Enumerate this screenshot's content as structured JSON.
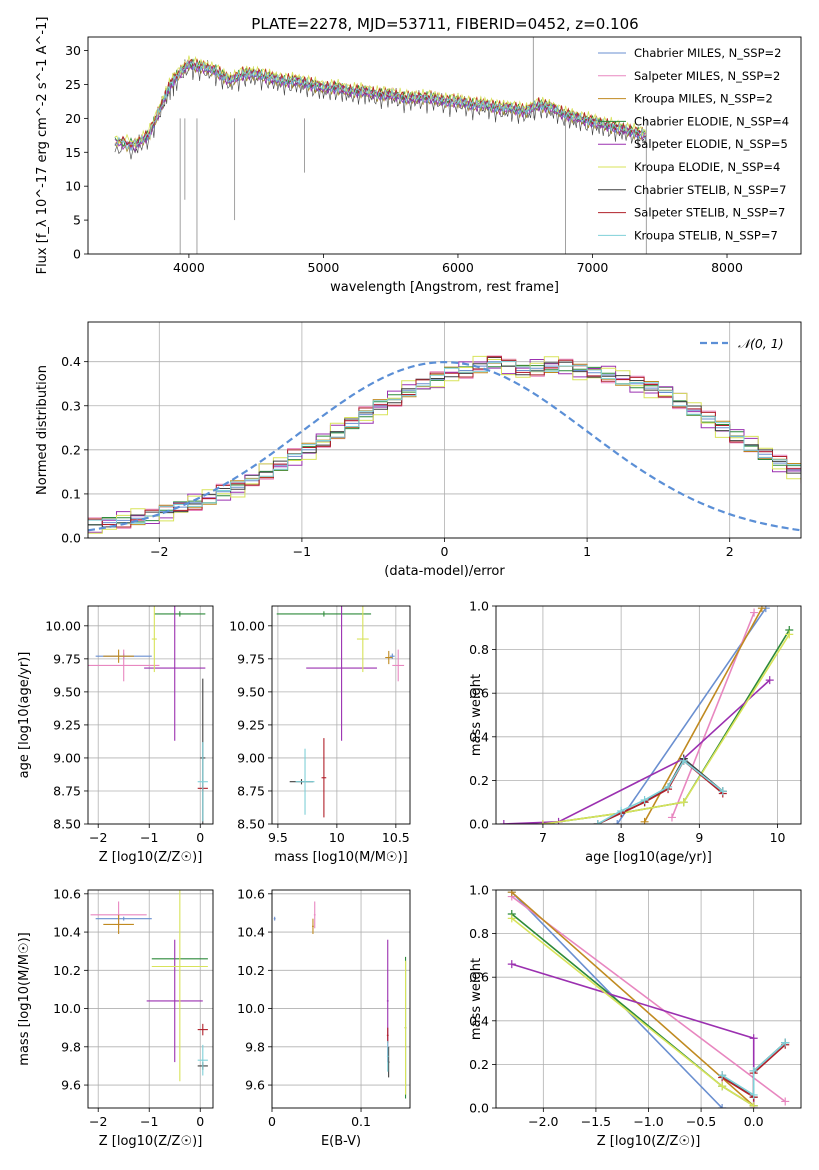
{
  "figure_title": "PLATE=2278, MJD=53711, FIBERID=0452, z=0.106",
  "series_names": [
    "Chabrier MILES, N_SSP=2",
    "Salpeter MILES, N_SSP=2",
    "Kroupa MILES, N_SSP=2",
    "Chabrier ELODIE, N_SSP=4",
    "Salpeter ELODIE, N_SSP=5",
    "Kroupa ELODIE, N_SSP=4",
    "Chabrier STELIB, N_SSP=7",
    "Salpeter STELIB, N_SSP=7",
    "Kroupa STELIB, N_SSP=7"
  ],
  "colors": [
    "#5b8fd6",
    "#e07b3a",
    "#a88c2c",
    "#2d8a3a",
    "#9b30b0",
    "#d8e35a",
    "#404040",
    "#b0202a",
    "#7fd0d8"
  ],
  "legend_colors": [
    "#6a8fd0",
    "#e887c0",
    "#c08a20",
    "#2d8a3a",
    "#9b30b0",
    "#d8e35a",
    "#404040",
    "#b0202a",
    "#7fd0d8"
  ],
  "chart_data": [
    {
      "type": "line",
      "title": "PLATE=2278, MJD=53711, FIBERID=0452, z=0.106",
      "xlabel": "wavelength [Angstrom, rest frame]",
      "ylabel": "Flux [f_λ 10^-17 erg cm^-2 s^-1 A^-1]",
      "xlim": [
        3250,
        8550
      ],
      "ylim": [
        0,
        32
      ],
      "xticks": [
        4000,
        5000,
        6000,
        7000,
        8000
      ],
      "yticks": [
        0,
        5,
        10,
        15,
        20,
        25,
        30
      ],
      "spectrum": {
        "x": [
          3450,
          3600,
          3700,
          3800,
          3850,
          3900,
          4000,
          4100,
          4200,
          4300,
          4400,
          4500,
          4600,
          4700,
          4800,
          4900,
          5000,
          5100,
          5200,
          5300,
          5400,
          5500,
          5600,
          5700,
          5800,
          5900,
          6000,
          6100,
          6200,
          6300,
          6400,
          6500,
          6600,
          6700,
          6800,
          6900,
          7000,
          7100,
          7200,
          7300,
          7400
        ],
        "y": [
          16.5,
          16.0,
          17.5,
          22.0,
          24.5,
          26.0,
          28.0,
          27.5,
          27.0,
          25.5,
          26.5,
          26.5,
          26.0,
          25.5,
          25.5,
          25.0,
          24.5,
          24.5,
          24.0,
          24.0,
          23.5,
          23.5,
          23.0,
          23.0,
          23.0,
          22.5,
          22.5,
          22.0,
          22.0,
          21.5,
          21.5,
          21.0,
          22.0,
          21.5,
          20.5,
          20.0,
          19.5,
          19.0,
          18.5,
          18.0,
          17.5
        ]
      },
      "legend": "top-right"
    },
    {
      "type": "line",
      "xlabel": "(data-model)/error",
      "ylabel": "Normed distribution",
      "xlim": [
        -2.5,
        2.5
      ],
      "ylim": [
        0,
        0.49
      ],
      "xticks": [
        -2,
        -1,
        0,
        1,
        2
      ],
      "yticks": [
        0.0,
        0.1,
        0.2,
        0.3,
        0.4
      ],
      "gauss_label": "𝒩(0, 1)",
      "histogram": {
        "edges_from": -2.5,
        "bin_width": 0.1,
        "values": [
          0.03,
          0.035,
          0.04,
          0.045,
          0.05,
          0.06,
          0.07,
          0.08,
          0.09,
          0.105,
          0.115,
          0.13,
          0.15,
          0.165,
          0.185,
          0.2,
          0.22,
          0.24,
          0.26,
          0.28,
          0.3,
          0.315,
          0.335,
          0.35,
          0.36,
          0.375,
          0.38,
          0.39,
          0.4,
          0.39,
          0.38,
          0.385,
          0.39,
          0.39,
          0.38,
          0.375,
          0.37,
          0.36,
          0.35,
          0.34,
          0.33,
          0.31,
          0.29,
          0.27,
          0.25,
          0.23,
          0.21,
          0.19,
          0.17,
          0.155,
          0.14,
          0.12,
          0.105,
          0.09,
          0.08,
          0.07,
          0.06,
          0.05,
          0.045,
          0.04
        ]
      },
      "grid": true,
      "legend": "top-right"
    },
    {
      "type": "scatter",
      "xlabel": "Z [log10(Z/Z☉)]",
      "ylabel": "age  [log10(age/yr)]",
      "xlim": [
        -2.2,
        0.25
      ],
      "ylim": [
        8.5,
        10.15
      ],
      "xticks": [
        -2,
        -1,
        0
      ],
      "yticks": [
        8.5,
        8.75,
        9.0,
        9.25,
        9.5,
        9.75,
        10.0
      ],
      "points": [
        {
          "series": 0,
          "x": -1.5,
          "y": 9.77,
          "xerr": 0.55,
          "yerr": 0.02
        },
        {
          "series": 1,
          "x": -1.5,
          "y": 9.7,
          "xerr": 0.7,
          "yerr": 0.12
        },
        {
          "series": 2,
          "x": -1.6,
          "y": 9.77,
          "xerr": 0.3,
          "yerr": 0.05
        },
        {
          "series": 3,
          "x": -0.4,
          "y": 10.09,
          "xerr": 0.5,
          "yerr": 0.02
        },
        {
          "series": 4,
          "x": -0.5,
          "y": 9.68,
          "xerr": 0.6,
          "yerr": 0.55
        },
        {
          "series": 5,
          "x": -0.9,
          "y": 9.9,
          "xerr": 0.05,
          "yerr": 0.25
        },
        {
          "series": 6,
          "x": 0.05,
          "y": 9.0,
          "xerr": 0.05,
          "yerr": 0.6
        },
        {
          "series": 7,
          "x": 0.05,
          "y": 8.77,
          "xerr": 0.1,
          "yerr": 0.02
        },
        {
          "series": 8,
          "x": 0.05,
          "y": 8.82,
          "xerr": 0.1,
          "yerr": 0.3
        }
      ],
      "grid": true
    },
    {
      "type": "scatter",
      "xlabel": "mass [log10(M/M☉)]",
      "ylabel": "",
      "xlim": [
        9.45,
        10.62
      ],
      "ylim": [
        8.5,
        10.15
      ],
      "xticks": [
        9.5,
        10.0,
        10.5
      ],
      "yticks": [
        8.5,
        8.75,
        9.0,
        9.25,
        9.5,
        9.75,
        10.0
      ],
      "points": [
        {
          "series": 0,
          "x": 10.47,
          "y": 9.77,
          "xerr": 0.02,
          "yerr": 0.02
        },
        {
          "series": 1,
          "x": 10.52,
          "y": 9.7,
          "xerr": 0.05,
          "yerr": 0.12
        },
        {
          "series": 2,
          "x": 10.44,
          "y": 9.76,
          "xerr": 0.03,
          "yerr": 0.05
        },
        {
          "series": 3,
          "x": 9.89,
          "y": 10.09,
          "xerr": 0.4,
          "yerr": 0.02
        },
        {
          "series": 4,
          "x": 10.04,
          "y": 9.68,
          "xerr": 0.3,
          "yerr": 0.55
        },
        {
          "series": 5,
          "x": 10.22,
          "y": 9.9,
          "xerr": 0.05,
          "yerr": 0.25
        },
        {
          "series": 6,
          "x": 9.7,
          "y": 8.82,
          "xerr": 0.1,
          "yerr": 0.02
        },
        {
          "series": 7,
          "x": 9.89,
          "y": 8.85,
          "xerr": 0.02,
          "yerr": 0.3
        },
        {
          "series": 8,
          "x": 9.73,
          "y": 8.82,
          "xerr": 0.08,
          "yerr": 0.25
        }
      ],
      "grid": true
    },
    {
      "type": "line",
      "xlabel": "age  [log10(age/yr)]",
      "ylabel": "mass weight",
      "xlim": [
        6.4,
        10.3
      ],
      "ylim": [
        0,
        1
      ],
      "xticks": [
        7,
        8,
        9,
        10
      ],
      "yticks": [
        0.0,
        0.2,
        0.4,
        0.6,
        0.8,
        1.0
      ],
      "series": [
        {
          "series": 0,
          "x": [
            7.95,
            9.85
          ],
          "y": [
            0.0,
            0.99
          ]
        },
        {
          "series": 1,
          "x": [
            8.65,
            9.7
          ],
          "y": [
            0.03,
            0.97
          ]
        },
        {
          "series": 2,
          "x": [
            8.3,
            9.8
          ],
          "y": [
            0.01,
            0.99
          ]
        },
        {
          "series": 3,
          "x": [
            7.0,
            8.0,
            8.8,
            10.15
          ],
          "y": [
            0.0,
            0.05,
            0.1,
            0.89
          ]
        },
        {
          "series": 4,
          "x": [
            6.5,
            7.2,
            8.8,
            9.9
          ],
          "y": [
            0.0,
            0.01,
            0.3,
            0.66
          ]
        },
        {
          "series": 5,
          "x": [
            7.0,
            8.0,
            8.8,
            10.15
          ],
          "y": [
            0.0,
            0.05,
            0.1,
            0.87
          ]
        },
        {
          "series": 6,
          "x": [
            7.7,
            8.0,
            8.3,
            8.6,
            8.8,
            9.3
          ],
          "y": [
            0.0,
            0.05,
            0.1,
            0.17,
            0.3,
            0.15
          ]
        },
        {
          "series": 7,
          "x": [
            7.7,
            8.0,
            8.3,
            8.6,
            8.8,
            9.3
          ],
          "y": [
            0.0,
            0.05,
            0.1,
            0.16,
            0.29,
            0.14
          ]
        },
        {
          "series": 8,
          "x": [
            7.7,
            8.0,
            8.3,
            8.6,
            8.8,
            9.3
          ],
          "y": [
            0.0,
            0.06,
            0.11,
            0.17,
            0.29,
            0.15
          ]
        }
      ],
      "grid": true
    },
    {
      "type": "scatter",
      "xlabel": "Z [log10(Z/Z☉)]",
      "ylabel": "mass [log10(M/M☉)]",
      "xlim": [
        -2.2,
        0.25
      ],
      "ylim": [
        9.48,
        10.62
      ],
      "xticks": [
        -2,
        -1,
        0
      ],
      "yticks": [
        9.6,
        9.8,
        10.0,
        10.2,
        10.4,
        10.6
      ],
      "points": [
        {
          "series": 0,
          "x": -1.5,
          "y": 10.47,
          "xerr": 0.55,
          "yerr": 0.01
        },
        {
          "series": 1,
          "x": -1.6,
          "y": 10.49,
          "xerr": 0.55,
          "yerr": 0.07
        },
        {
          "series": 2,
          "x": -1.6,
          "y": 10.44,
          "xerr": 0.3,
          "yerr": 0.05
        },
        {
          "series": 3,
          "x": -0.4,
          "y": 10.26,
          "xerr": 0.55,
          "yerr": 0.0
        },
        {
          "series": 4,
          "x": -0.5,
          "y": 10.04,
          "xerr": 0.55,
          "yerr": 0.32
        },
        {
          "series": 5,
          "x": -0.4,
          "y": 10.22,
          "xerr": 0.55,
          "yerr": 0.6
        },
        {
          "series": 6,
          "x": 0.05,
          "y": 9.7,
          "xerr": 0.1,
          "yerr": 0.02
        },
        {
          "series": 7,
          "x": 0.05,
          "y": 9.89,
          "xerr": 0.1,
          "yerr": 0.03
        },
        {
          "series": 8,
          "x": 0.05,
          "y": 9.73,
          "xerr": 0.1,
          "yerr": 0.08
        }
      ],
      "grid": true
    },
    {
      "type": "scatter",
      "xlabel": "E(B-V)",
      "ylabel": "",
      "xlim": [
        0.0,
        0.155
      ],
      "ylim": [
        9.48,
        10.62
      ],
      "xticks": [
        0.0,
        0.1
      ],
      "yticks": [
        9.6,
        9.8,
        10.0,
        10.2,
        10.4,
        10.6
      ],
      "points": [
        {
          "series": 0,
          "x": 0.003,
          "y": 10.47,
          "xerr": 0.001,
          "yerr": 0.01
        },
        {
          "series": 1,
          "x": 0.048,
          "y": 10.49,
          "xerr": 0.001,
          "yerr": 0.07
        },
        {
          "series": 2,
          "x": 0.046,
          "y": 10.43,
          "xerr": 0.001,
          "yerr": 0.04
        },
        {
          "series": 3,
          "x": 0.15,
          "y": 9.9,
          "xerr": 0.001,
          "yerr": 0.37
        },
        {
          "series": 4,
          "x": 0.13,
          "y": 10.04,
          "xerr": 0.001,
          "yerr": 0.32
        },
        {
          "series": 5,
          "x": 0.15,
          "y": 9.9,
          "xerr": 0.001,
          "yerr": 0.35
        },
        {
          "series": 6,
          "x": 0.131,
          "y": 9.72,
          "xerr": 0.001,
          "yerr": 0.08
        },
        {
          "series": 7,
          "x": 0.13,
          "y": 9.86,
          "xerr": 0.001,
          "yerr": 0.04
        },
        {
          "series": 8,
          "x": 0.13,
          "y": 9.75,
          "xerr": 0.001,
          "yerr": 0.08
        }
      ],
      "grid": true
    },
    {
      "type": "line",
      "xlabel": "Z [log10(Z/Z☉)]",
      "ylabel": "mass weight",
      "xlim": [
        -2.45,
        0.45
      ],
      "ylim": [
        0,
        1
      ],
      "xticks": [
        -2.0,
        -1.5,
        -1.0,
        -0.5,
        0.0
      ],
      "yticks": [
        0.0,
        0.2,
        0.4,
        0.6,
        0.8,
        1.0
      ],
      "series": [
        {
          "series": 0,
          "x": [
            -2.3,
            -0.3
          ],
          "y": [
            0.99,
            0.0
          ]
        },
        {
          "series": 1,
          "x": [
            -2.3,
            0.3
          ],
          "y": [
            0.97,
            0.03
          ]
        },
        {
          "series": 2,
          "x": [
            -2.3,
            0.0
          ],
          "y": [
            0.99,
            0.01
          ]
        },
        {
          "series": 3,
          "x": [
            -2.3,
            -0.3,
            0.0
          ],
          "y": [
            0.89,
            0.1,
            0.01
          ]
        },
        {
          "series": 4,
          "x": [
            -2.3,
            0.0,
            0.0
          ],
          "y": [
            0.66,
            0.32,
            0.0
          ]
        },
        {
          "series": 5,
          "x": [
            -2.3,
            -0.3,
            0.0
          ],
          "y": [
            0.87,
            0.1,
            0.01
          ]
        },
        {
          "series": 6,
          "x": [
            -0.3,
            0.0,
            0.0,
            0.3
          ],
          "y": [
            0.15,
            0.05,
            0.17,
            0.3
          ]
        },
        {
          "series": 7,
          "x": [
            -0.3,
            0.0,
            0.0,
            0.3
          ],
          "y": [
            0.14,
            0.05,
            0.16,
            0.29
          ]
        },
        {
          "series": 8,
          "x": [
            -0.3,
            0.0,
            0.0,
            0.3
          ],
          "y": [
            0.15,
            0.06,
            0.17,
            0.3
          ]
        }
      ],
      "grid": true
    }
  ]
}
